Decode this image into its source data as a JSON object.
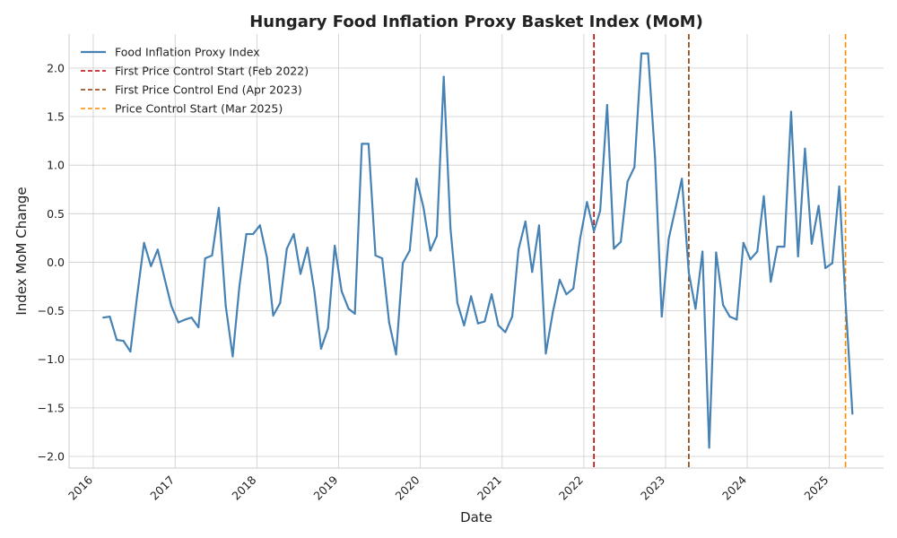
{
  "chart_data": {
    "type": "line",
    "title": "Hungary Food Inflation Proxy Basket Index (MoM)",
    "xlabel": "Date",
    "ylabel": "Index MoM Change",
    "xlim": [
      "2015-09-15",
      "2025-09-01"
    ],
    "ylim": [
      -2.12,
      2.35
    ],
    "grid": true,
    "legend_position": "top-left",
    "x_ticks": [
      "2016",
      "2017",
      "2018",
      "2019",
      "2020",
      "2021",
      "2022",
      "2023",
      "2024",
      "2025"
    ],
    "y_ticks": [
      "2.0",
      "1.5",
      "1.0",
      "0.5",
      "0.0",
      "−0.5",
      "−1.0",
      "−1.5",
      "−2.0"
    ],
    "y_tick_values": [
      2.0,
      1.5,
      1.0,
      0.5,
      0.0,
      -0.5,
      -1.0,
      -1.5,
      -2.0
    ],
    "series": [
      {
        "name": "Food Inflation Proxy Index",
        "color": "#4682b4",
        "x": [
          "2016-02",
          "2016-03",
          "2016-04",
          "2016-05",
          "2016-06",
          "2016-07",
          "2016-08",
          "2016-09",
          "2016-10",
          "2016-11",
          "2016-12",
          "2017-01",
          "2017-02",
          "2017-03",
          "2017-04",
          "2017-05",
          "2017-06",
          "2017-07",
          "2017-08",
          "2017-09",
          "2017-10",
          "2017-11",
          "2017-12",
          "2018-01",
          "2018-02",
          "2018-03",
          "2018-04",
          "2018-05",
          "2018-06",
          "2018-07",
          "2018-08",
          "2018-09",
          "2018-10",
          "2018-11",
          "2018-12",
          "2019-01",
          "2019-02",
          "2019-03",
          "2019-04",
          "2019-05",
          "2019-06",
          "2019-07",
          "2019-08",
          "2019-09",
          "2019-10",
          "2019-11",
          "2019-12",
          "2020-01",
          "2020-02",
          "2020-03",
          "2020-04",
          "2020-05",
          "2020-06",
          "2020-07",
          "2020-08",
          "2020-09",
          "2020-10",
          "2020-11",
          "2020-12",
          "2021-01",
          "2021-02",
          "2021-03",
          "2021-04",
          "2021-05",
          "2021-06",
          "2021-07",
          "2021-08",
          "2021-09",
          "2021-10",
          "2021-11",
          "2021-12",
          "2022-01",
          "2022-02",
          "2022-03",
          "2022-04",
          "2022-05",
          "2022-06",
          "2022-07",
          "2022-08",
          "2022-09",
          "2022-10",
          "2022-11",
          "2022-12",
          "2023-01",
          "2023-02",
          "2023-03",
          "2023-04",
          "2023-05",
          "2023-06",
          "2023-07",
          "2023-08",
          "2023-09",
          "2023-10",
          "2023-11",
          "2023-12",
          "2024-01",
          "2024-02",
          "2024-03",
          "2024-04",
          "2024-05",
          "2024-06",
          "2024-07",
          "2024-08",
          "2024-09",
          "2024-10",
          "2024-11",
          "2024-12",
          "2025-01",
          "2025-02",
          "2025-03",
          "2025-04"
        ],
        "values": [
          -0.57,
          -0.56,
          -0.8,
          -0.81,
          -0.92,
          -0.35,
          0.2,
          -0.04,
          0.13,
          -0.17,
          -0.45,
          -0.62,
          -0.59,
          -0.57,
          -0.67,
          0.04,
          0.07,
          0.56,
          -0.45,
          -0.97,
          -0.25,
          0.29,
          0.29,
          0.38,
          0.05,
          -0.55,
          -0.42,
          0.14,
          0.29,
          -0.12,
          0.15,
          -0.3,
          -0.89,
          -0.68,
          0.17,
          -0.3,
          -0.48,
          -0.53,
          1.22,
          1.22,
          0.07,
          0.04,
          -0.62,
          -0.95,
          -0.01,
          0.12,
          0.86,
          0.57,
          0.12,
          0.27,
          1.91,
          0.35,
          -0.42,
          -0.65,
          -0.35,
          -0.63,
          -0.61,
          -0.33,
          -0.65,
          -0.72,
          -0.56,
          0.13,
          0.42,
          -0.1,
          0.38,
          -0.94,
          -0.52,
          -0.18,
          -0.33,
          -0.27,
          0.24,
          0.62,
          0.32,
          0.53,
          1.62,
          0.14,
          0.21,
          0.83,
          0.98,
          2.15,
          2.15,
          1.08,
          -0.56,
          0.24,
          0.56,
          0.86,
          -0.11,
          -0.48,
          0.11,
          -1.91,
          0.1,
          -0.44,
          -0.56,
          -0.59,
          0.2,
          0.03,
          0.11,
          0.68,
          -0.2,
          0.16,
          0.16,
          1.55,
          0.06,
          1.17,
          0.19,
          0.58,
          -0.06,
          -0.01,
          0.78,
          -0.4,
          -1.56
        ]
      }
    ],
    "vertical_lines": [
      {
        "name": "First Price Control Start (Feb 2022)",
        "date": "2022-02",
        "color": "#c00000"
      },
      {
        "name": "First Price Control End (Apr 2023)",
        "date": "2023-04",
        "color": "#8b3a00"
      },
      {
        "name": "Price Control Start (Mar 2025)",
        "date": "2025-03",
        "color": "#ff8c00"
      }
    ]
  }
}
